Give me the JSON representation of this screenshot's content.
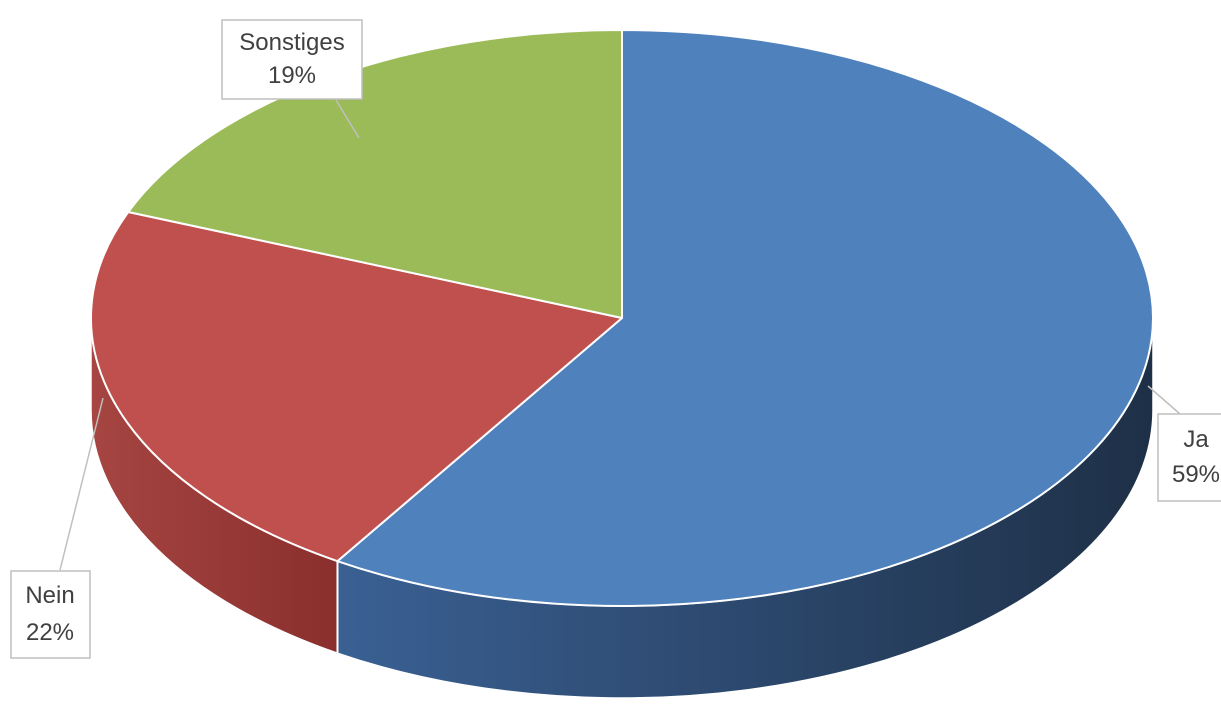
{
  "chart_data": {
    "type": "pie",
    "style": "3d",
    "slices": [
      {
        "label": "Ja",
        "value": 59,
        "value_label": "59%",
        "color": "#4F81BD",
        "side_color": "#2C4A75"
      },
      {
        "label": "Nein",
        "value": 22,
        "value_label": "22%",
        "color": "#C0504D",
        "side_color": "#8E3230"
      },
      {
        "label": "Sonstiges",
        "value": 19,
        "value_label": "19%",
        "color": "#9BBB59",
        "side_color": "#6E8A3A"
      }
    ]
  }
}
